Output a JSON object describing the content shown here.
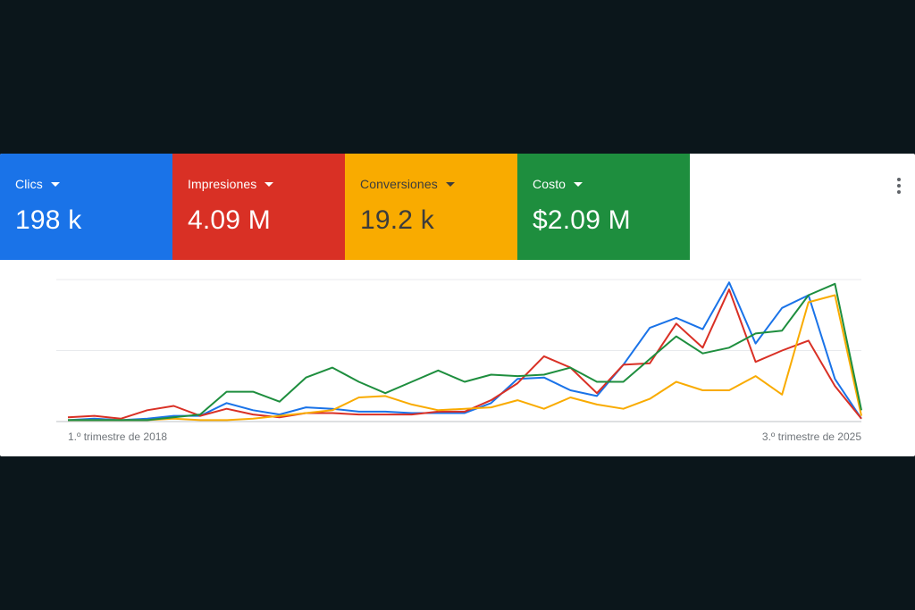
{
  "metrics": [
    {
      "label": "Clics",
      "value": "198 k",
      "color": "#1a73e8",
      "text_color": "#ffffff"
    },
    {
      "label": "Impresiones",
      "value": "4.09 M",
      "color": "#d93025",
      "text_color": "#ffffff"
    },
    {
      "label": "Conversiones",
      "value": "19.2 k",
      "color": "#f9ab00",
      "text_color": "#3c3c3c"
    },
    {
      "label": "Costo",
      "value": "$2.09 M",
      "color": "#1e8e3e",
      "text_color": "#ffffff"
    }
  ],
  "menu_icon": "more-vert-icon",
  "chart_data": {
    "type": "line",
    "x_tick_labels": [
      "1.º trimestre de 2018",
      "3.º trimestre de 2025"
    ],
    "x_count": 31,
    "ylim": [
      0,
      100
    ],
    "grid": true,
    "legend": "none",
    "series": [
      {
        "color": "#1a73e8",
        "values": [
          1,
          2,
          1,
          2,
          4,
          4,
          13,
          8,
          5,
          10,
          9,
          7,
          7,
          6,
          6,
          6,
          13,
          30,
          31,
          22,
          18,
          40,
          66,
          73,
          65,
          98,
          55,
          80,
          89,
          30,
          2
        ]
      },
      {
        "color": "#d93025",
        "values": [
          3,
          4,
          2,
          8,
          11,
          4,
          9,
          5,
          3,
          6,
          6,
          5,
          5,
          5,
          7,
          7,
          15,
          27,
          46,
          38,
          20,
          40,
          41,
          69,
          52,
          93,
          42,
          50,
          57,
          25,
          2
        ]
      },
      {
        "color": "#f9ab00",
        "values": [
          1,
          1,
          1,
          1,
          2,
          1,
          1,
          2,
          4,
          6,
          8,
          17,
          18,
          12,
          8,
          9,
          10,
          15,
          9,
          17,
          12,
          9,
          16,
          28,
          22,
          22,
          32,
          19,
          84,
          89,
          4
        ]
      },
      {
        "color": "#1e8e3e",
        "values": [
          1,
          1,
          1,
          1,
          3,
          5,
          21,
          21,
          14,
          31,
          38,
          28,
          20,
          28,
          36,
          28,
          33,
          32,
          33,
          38,
          28,
          28,
          44,
          60,
          48,
          52,
          62,
          64,
          89,
          97,
          8
        ]
      }
    ]
  }
}
